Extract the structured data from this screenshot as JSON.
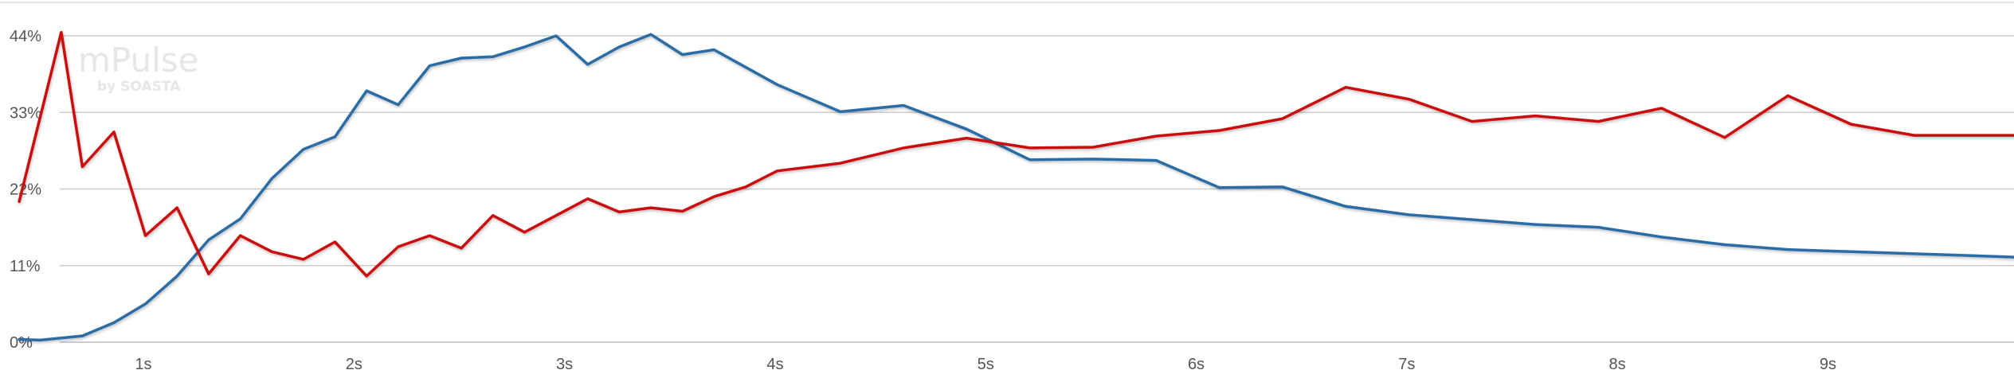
{
  "watermark": {
    "main": "mPulse",
    "sub": "by SOASTA"
  },
  "chart_data": {
    "type": "line",
    "title": "",
    "xlabel": "",
    "ylabel": "",
    "xlim": [
      0.41,
      9.91
    ],
    "ylim": [
      0,
      44
    ],
    "y_ticks": [
      {
        "value": 0,
        "label": "0%"
      },
      {
        "value": 11,
        "label": "11%"
      },
      {
        "value": 22,
        "label": "22%"
      },
      {
        "value": 33,
        "label": "33%"
      },
      {
        "value": 44,
        "label": "44%"
      }
    ],
    "x_ticks": [
      {
        "value": 1,
        "label": "1s"
      },
      {
        "value": 2,
        "label": "2s"
      },
      {
        "value": 3,
        "label": "3s"
      },
      {
        "value": 4,
        "label": "4s"
      },
      {
        "value": 5,
        "label": "5s"
      },
      {
        "value": 6,
        "label": "6s"
      },
      {
        "value": 7,
        "label": "7s"
      },
      {
        "value": 8,
        "label": "8s"
      },
      {
        "value": 9,
        "label": "9s"
      }
    ],
    "grid": true,
    "legend": "none",
    "series": [
      {
        "color": "#2a6ca5",
        "x": [
          0.41,
          0.51,
          0.61,
          0.71,
          0.86,
          1.01,
          1.16,
          1.31,
          1.46,
          1.61,
          1.76,
          1.91,
          2.06,
          2.21,
          2.36,
          2.51,
          2.66,
          2.81,
          2.96,
          3.11,
          3.26,
          3.41,
          3.56,
          3.71,
          4.01,
          4.31,
          4.61,
          4.91,
          5.21,
          5.51,
          5.81,
          6.11,
          6.41,
          6.71,
          7.01,
          7.31,
          7.61,
          7.91,
          8.21,
          8.51,
          8.81,
          9.11,
          9.41,
          9.71,
          9.91
        ],
        "y": [
          0.4,
          0.3,
          0.6,
          0.9,
          2.8,
          5.5,
          9.5,
          14.7,
          17.7,
          23.5,
          27.7,
          29.5,
          36.1,
          34.1,
          39.7,
          40.8,
          41.0,
          42.4,
          44.0,
          39.9,
          42.4,
          44.2,
          41.3,
          42.0,
          37.0,
          33.1,
          34.0,
          30.6,
          26.2,
          26.3,
          26.1,
          22.2,
          22.3,
          19.5,
          18.3,
          17.6,
          16.9,
          16.5,
          15.1,
          14.0,
          13.3,
          13.0,
          12.7,
          12.4,
          12.2
        ]
      },
      {
        "color": "#cc1111",
        "x": [
          0.41,
          0.61,
          0.71,
          0.86,
          1.01,
          1.16,
          1.31,
          1.46,
          1.61,
          1.76,
          1.91,
          2.06,
          2.21,
          2.36,
          2.51,
          2.66,
          2.81,
          2.96,
          3.11,
          3.26,
          3.41,
          3.56,
          3.71,
          3.86,
          4.01,
          4.31,
          4.61,
          4.91,
          5.21,
          5.51,
          5.81,
          6.11,
          6.41,
          6.71,
          7.01,
          7.31,
          7.61,
          7.91,
          8.21,
          8.51,
          8.81,
          9.11,
          9.41,
          9.71,
          9.91
        ],
        "y": [
          20.2,
          44.5,
          25.2,
          30.2,
          15.3,
          19.3,
          9.8,
          15.3,
          13.0,
          11.9,
          14.4,
          9.5,
          13.7,
          15.3,
          13.5,
          18.2,
          15.8,
          18.2,
          20.6,
          18.7,
          19.3,
          18.8,
          20.9,
          22.3,
          24.6,
          25.7,
          27.9,
          29.3,
          27.9,
          28.0,
          29.6,
          30.4,
          32.1,
          36.6,
          34.9,
          31.7,
          32.5,
          31.7,
          33.6,
          29.4,
          35.4,
          31.3,
          29.7,
          29.7,
          29.7
        ]
      }
    ]
  }
}
